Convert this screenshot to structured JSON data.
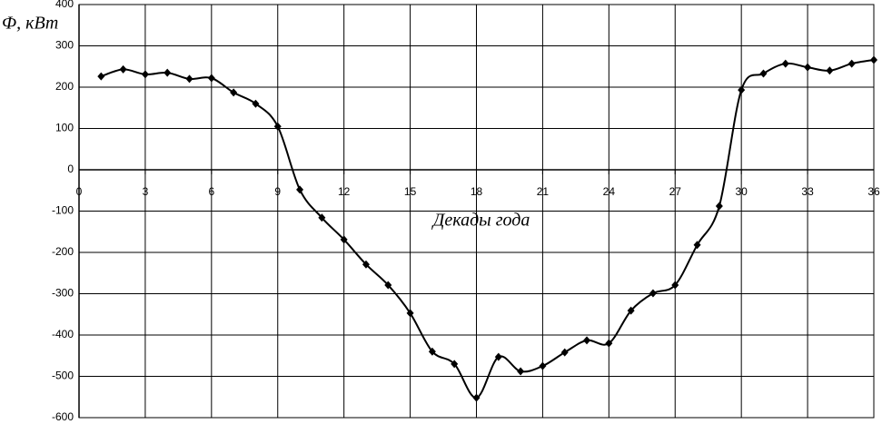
{
  "chart_data": {
    "type": "line",
    "y_label": "Ф, кВт",
    "x_label": "Декады года",
    "x": [
      1,
      2,
      3,
      4,
      5,
      6,
      7,
      8,
      9,
      10,
      11,
      12,
      13,
      14,
      15,
      16,
      17,
      18,
      19,
      20,
      21,
      22,
      23,
      24,
      25,
      26,
      27,
      28,
      29,
      30,
      31,
      32,
      33,
      34,
      35,
      36
    ],
    "series": [
      {
        "color": "#000000",
        "values": [
          226,
          243,
          231,
          235,
          220,
          222,
          187,
          160,
          105,
          -48,
          -116,
          -169,
          -229,
          -279,
          -347,
          -440,
          -470,
          -552,
          -453,
          -488,
          -475,
          -442,
          -413,
          -420,
          -341,
          -299,
          -279,
          -182,
          -88,
          193,
          233,
          257,
          248,
          240,
          257,
          266
        ]
      }
    ],
    "xlim": [
      0,
      36
    ],
    "xticks": [
      0,
      3,
      6,
      9,
      12,
      15,
      18,
      21,
      24,
      27,
      30,
      33,
      36
    ],
    "ylim": [
      -600,
      400
    ],
    "yticks": [
      -600,
      -500,
      -400,
      -300,
      -200,
      -100,
      0,
      100,
      200,
      300,
      400
    ],
    "grid": true
  }
}
